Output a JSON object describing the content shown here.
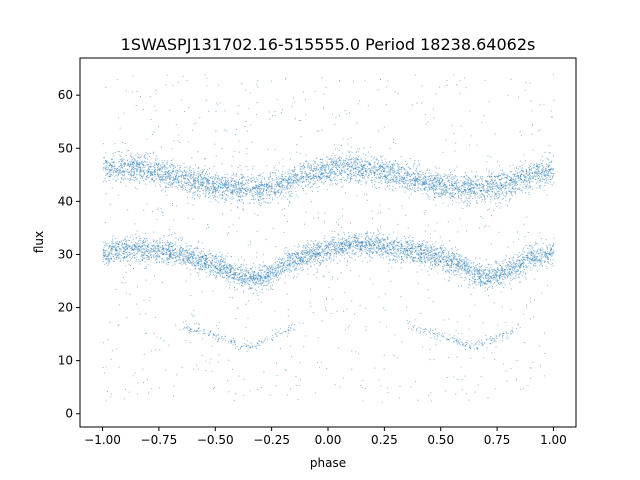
{
  "chart_data": {
    "type": "scatter",
    "title": "1SWASPJ131702.16-515555.0 Period 18238.64062s",
    "xlabel": "phase",
    "ylabel": "flux",
    "xlim": [
      -1.1,
      1.1
    ],
    "ylim": [
      -2.5,
      67
    ],
    "xticks": [
      -1.0,
      -0.75,
      -0.5,
      -0.25,
      0.0,
      0.25,
      0.5,
      0.75,
      1.0
    ],
    "xtick_labels": [
      "−1.00",
      "−0.75",
      "−0.50",
      "−0.25",
      "0.00",
      "0.25",
      "0.50",
      "0.75",
      "1.00"
    ],
    "yticks": [
      0,
      10,
      20,
      30,
      40,
      50,
      60
    ],
    "ytick_labels": [
      "0",
      "10",
      "20",
      "30",
      "40",
      "50",
      "60"
    ],
    "grid": false,
    "legend": "none",
    "marker_color": "#1f77b4",
    "series": [
      {
        "description": "upper band",
        "phase_range": [
          -1.0,
          1.0
        ],
        "x": [
          -1.0,
          -0.9,
          -0.8,
          -0.7,
          -0.6,
          -0.5,
          -0.4,
          -0.3,
          -0.2,
          -0.1,
          0.0,
          0.1,
          0.2,
          0.3,
          0.4,
          0.5,
          0.6,
          0.7,
          0.8,
          0.9,
          1.0
        ],
        "y": [
          46,
          46.5,
          46,
          45,
          44,
          43,
          42.5,
          42.5,
          43.5,
          45,
          46,
          46.5,
          46,
          45,
          44,
          43,
          42.5,
          42.5,
          43.5,
          45,
          46
        ],
        "spread": 2.2
      },
      {
        "description": "lower band",
        "phase_range": [
          -1.0,
          1.0
        ],
        "x": [
          -1.0,
          -0.9,
          -0.8,
          -0.7,
          -0.6,
          -0.5,
          -0.4,
          -0.3,
          -0.2,
          -0.1,
          0.0,
          0.1,
          0.2,
          0.3,
          0.4,
          0.5,
          0.6,
          0.7,
          0.8,
          0.9,
          1.0
        ],
        "y": [
          30.5,
          31,
          31,
          30.5,
          29.5,
          28,
          26,
          25.5,
          28,
          30,
          31,
          32,
          32,
          31,
          30.5,
          29.5,
          27.5,
          25.5,
          27,
          29.5,
          30.5
        ],
        "spread": 1.9
      },
      {
        "description": "faint dip arcs",
        "x": [
          -0.65,
          -0.55,
          -0.45,
          -0.35,
          -0.25,
          -0.15,
          0.35,
          0.45,
          0.55,
          0.65,
          0.75,
          0.85
        ],
        "y": [
          16.5,
          15.5,
          14,
          12.5,
          14.5,
          16.5,
          16.5,
          15.5,
          14,
          12.5,
          14.5,
          16.5
        ]
      }
    ]
  }
}
